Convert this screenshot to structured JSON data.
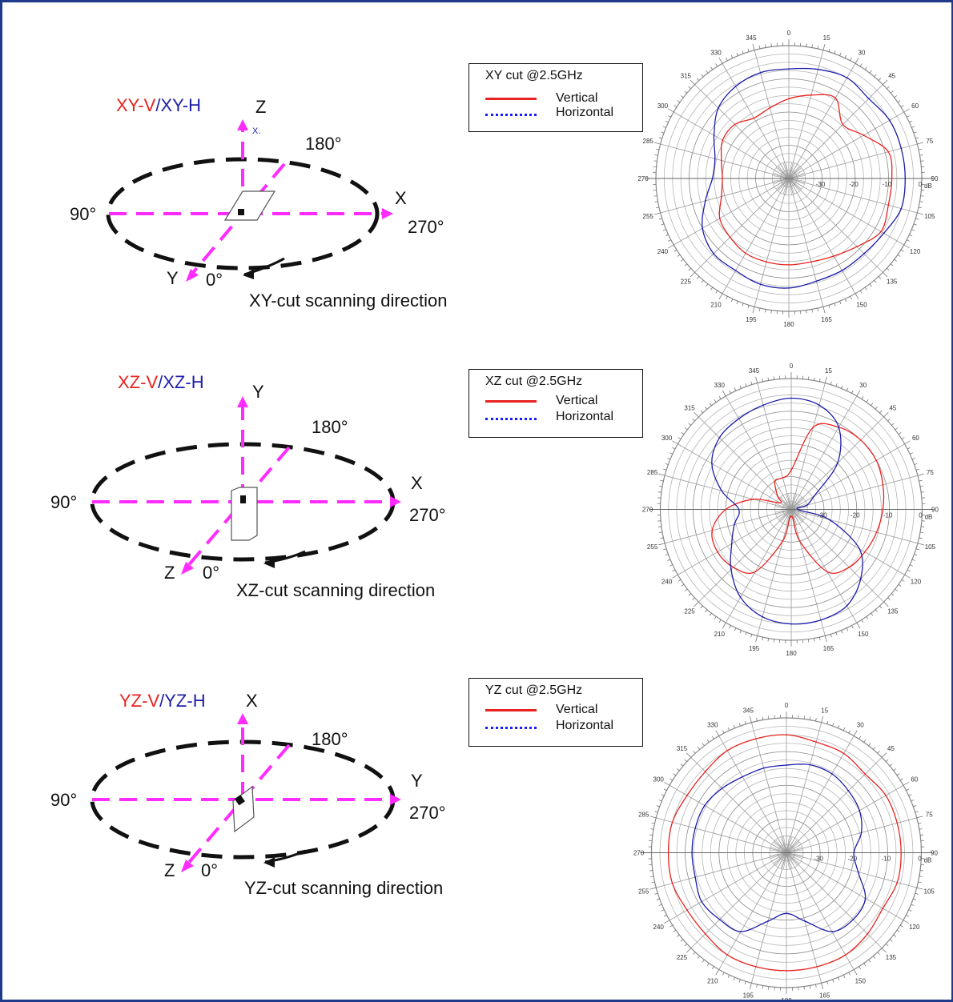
{
  "sections": [
    {
      "id": "xy",
      "cut_label": {
        "v": "XY-V",
        "sep": "/",
        "h": "XY-H"
      },
      "axis_up": "Z",
      "axis_right": "X",
      "axis_diag": "Y",
      "angle_top": "180°",
      "angle_left": "90°",
      "angle_right": "270°",
      "angle_bottom": "0°",
      "scan_label": "XY-cut scanning direction",
      "stray_mark": "X.",
      "legend": {
        "title": "XY cut @2.5GHz",
        "vertical": "Vertical",
        "horizontal": "Horizontal"
      }
    },
    {
      "id": "xz",
      "cut_label": {
        "v": "XZ-V",
        "sep": "/",
        "h": "XZ-H"
      },
      "axis_up": "Y",
      "axis_right": "X",
      "axis_diag": "Z",
      "angle_top": "180°",
      "angle_left": "90°",
      "angle_right": "270°",
      "angle_bottom": "0°",
      "scan_label": "XZ-cut scanning direction",
      "legend": {
        "title": "XZ cut @2.5GHz",
        "vertical": "Vertical",
        "horizontal": "Horizontal"
      }
    },
    {
      "id": "yz",
      "cut_label": {
        "v": "YZ-V",
        "sep": "/",
        "h": "YZ-H"
      },
      "axis_up": "X",
      "axis_right": "Y",
      "axis_diag": "Z",
      "angle_top": "180°",
      "angle_left": "90°",
      "angle_right": "270°",
      "angle_bottom": "0°",
      "scan_label": "YZ-cut scanning direction",
      "legend": {
        "title": "YZ cut @2.5GHz",
        "vertical": "Vertical",
        "horizontal": "Horizontal"
      }
    }
  ],
  "colors": {
    "vertical": "#e8231f",
    "horizontal": "#1d1daa",
    "legend_horizontal_swatch": "#1a1aff",
    "axis_arrow": "#ff2bff",
    "ellipse": "#111111",
    "frame": "#1f3a8a"
  },
  "chart_data": [
    {
      "type": "polar-line",
      "title": "XY cut @2.5GHz",
      "radial_unit": "dB",
      "radial_ticks": [
        "-30",
        "-20",
        "-10",
        "0"
      ],
      "rlim": [
        -40,
        0
      ],
      "angle_ticks": [
        "0",
        "15",
        "30",
        "45",
        "60",
        "75",
        "90",
        "105",
        "120",
        "135",
        "150",
        "165",
        "180",
        "195",
        "210",
        "225",
        "240",
        "255",
        "270",
        "285",
        "300",
        "315",
        "330",
        "345"
      ],
      "angle_direction": "clockwise",
      "series": [
        {
          "name": "Vertical",
          "key": "vertical",
          "angles": [
            0,
            15,
            30,
            45,
            60,
            75,
            90,
            105,
            120,
            135,
            150,
            165,
            180,
            195,
            210,
            225,
            240,
            255,
            270,
            285,
            300,
            315,
            330,
            345
          ],
          "r": [
            -16,
            -14,
            -12,
            -17,
            -14,
            -9,
            -9,
            -9,
            -8,
            -11,
            -13,
            -14,
            -14,
            -14,
            -14,
            -15,
            -16,
            -19,
            -20,
            -19,
            -17,
            -17,
            -19,
            -18
          ]
        },
        {
          "name": "Horizontal",
          "key": "horizontal",
          "angles": [
            0,
            15,
            30,
            45,
            60,
            75,
            90,
            105,
            120,
            135,
            150,
            165,
            180,
            195,
            210,
            225,
            240,
            255,
            270,
            285,
            300,
            315,
            330,
            345
          ],
          "r": [
            -7,
            -6,
            -5,
            -6,
            -5,
            -5,
            -5,
            -5,
            -7,
            -8,
            -8,
            -8,
            -7,
            -7,
            -8,
            -8,
            -10,
            -14,
            -17,
            -17,
            -14,
            -10,
            -8,
            -7
          ]
        }
      ]
    },
    {
      "type": "polar-line",
      "title": "XZ cut @2.5GHz",
      "radial_unit": "dB",
      "radial_ticks": [
        "-30",
        "-20",
        "-10",
        "0"
      ],
      "rlim": [
        -40,
        0
      ],
      "angle_ticks": [
        "0",
        "15",
        "30",
        "45",
        "60",
        "75",
        "90",
        "105",
        "120",
        "135",
        "150",
        "165",
        "180",
        "195",
        "210",
        "225",
        "240",
        "255",
        "270",
        "285",
        "300",
        "315",
        "330",
        "345"
      ],
      "angle_direction": "clockwise",
      "series": [
        {
          "name": "Vertical",
          "key": "vertical",
          "angles": [
            0,
            15,
            30,
            45,
            60,
            75,
            90,
            105,
            120,
            135,
            150,
            165,
            180,
            195,
            210,
            225,
            240,
            255,
            270,
            285,
            300,
            315,
            330,
            345
          ],
          "r": [
            -28,
            -14,
            -11,
            -10,
            -10,
            -11,
            -12,
            -13,
            -14,
            -15,
            -18,
            -30,
            -38,
            -30,
            -18,
            -15,
            -14,
            -15,
            -20,
            -28,
            -36,
            -34,
            -30,
            -30
          ]
        },
        {
          "name": "Horizontal",
          "key": "horizontal",
          "angles": [
            0,
            15,
            30,
            45,
            60,
            75,
            90,
            105,
            120,
            135,
            150,
            165,
            180,
            195,
            210,
            225,
            240,
            255,
            270,
            285,
            300,
            315,
            330,
            345
          ],
          "r": [
            -6,
            -7,
            -11,
            -20,
            -32,
            -35,
            -38,
            -28,
            -16,
            -10,
            -6,
            -5,
            -5,
            -6,
            -9,
            -14,
            -19,
            -22,
            -24,
            -18,
            -12,
            -9,
            -8,
            -7
          ]
        }
      ]
    },
    {
      "type": "polar-line",
      "title": "YZ cut @2.5GHz",
      "radial_unit": "dB",
      "radial_ticks": [
        "-30",
        "-20",
        "-10",
        "0"
      ],
      "rlim": [
        -40,
        0
      ],
      "angle_ticks": [
        "0",
        "15",
        "30",
        "45",
        "60",
        "75",
        "90",
        "105",
        "120",
        "135",
        "150",
        "165",
        "180",
        "195",
        "210",
        "225",
        "240",
        "255",
        "270",
        "285",
        "300",
        "315",
        "330",
        "345"
      ],
      "angle_direction": "clockwise",
      "series": [
        {
          "name": "Vertical",
          "key": "vertical",
          "angles": [
            0,
            15,
            30,
            45,
            60,
            75,
            90,
            105,
            120,
            135,
            150,
            165,
            180,
            195,
            210,
            225,
            240,
            255,
            270,
            285,
            300,
            315,
            330,
            345
          ],
          "r": [
            -5,
            -6,
            -6,
            -7,
            -6,
            -6,
            -6,
            -6,
            -7,
            -6,
            -5,
            -5,
            -5,
            -5,
            -5,
            -6,
            -6,
            -5,
            -5,
            -5,
            -6,
            -6,
            -5,
            -5
          ]
        },
        {
          "name": "Horizontal",
          "key": "horizontal",
          "angles": [
            0,
            15,
            30,
            45,
            60,
            75,
            90,
            105,
            120,
            135,
            150,
            165,
            180,
            195,
            210,
            225,
            240,
            255,
            270,
            285,
            300,
            315,
            330,
            345
          ],
          "r": [
            -14,
            -13,
            -13,
            -14,
            -15,
            -17,
            -20,
            -18,
            -13,
            -12,
            -13,
            -19,
            -22,
            -19,
            -13,
            -12,
            -11,
            -12,
            -12,
            -12,
            -12,
            -13,
            -14,
            -14
          ]
        }
      ]
    }
  ]
}
